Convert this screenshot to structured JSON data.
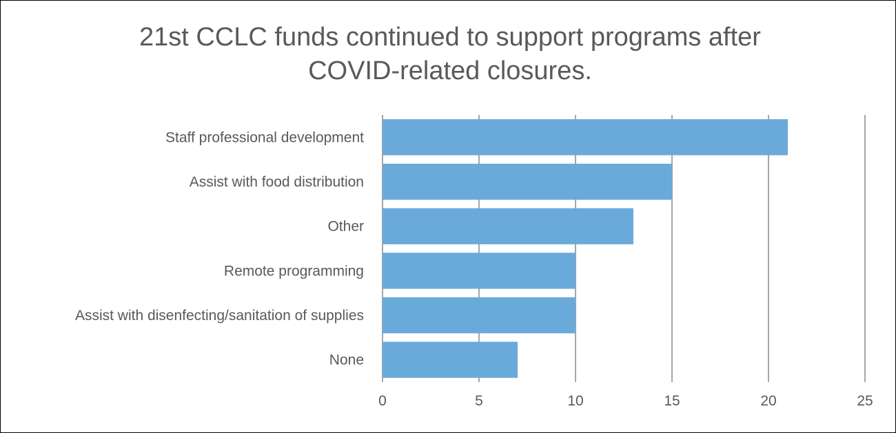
{
  "chart_data": {
    "type": "bar",
    "orientation": "horizontal",
    "title_lines": [
      "21st CCLC funds continued to support programs after",
      "COVID-related closures."
    ],
    "categories": [
      "Staff professional development",
      "Assist with food distribution",
      "Other",
      "Remote programming",
      "Assist with disenfecting/sanitation of supplies",
      "None"
    ],
    "values": [
      21,
      15,
      13,
      10,
      10,
      7
    ],
    "xlim": [
      0,
      25
    ],
    "xticks": [
      "0",
      "5",
      "10",
      "15",
      "20",
      "25"
    ],
    "grid": "vertical",
    "legend": "none",
    "bar_color": "#6aaadb",
    "grid_color": "#a6a6a6",
    "text_color": "#595959"
  }
}
